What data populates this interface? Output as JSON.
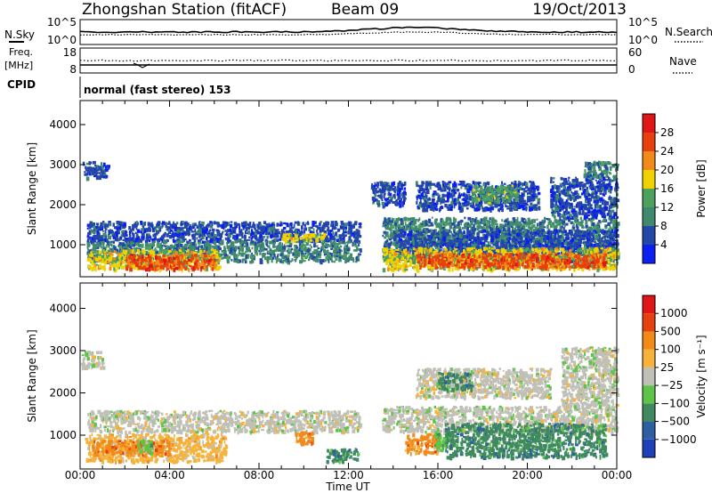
{
  "header": {
    "station": "Zhongshan Station (fitACF)",
    "beam": "Beam 09",
    "date": "19/Oct/2013"
  },
  "noise_panel": {
    "left_label": "N.Sky",
    "right_label": "N.Search",
    "left_ticks": [
      "10^5",
      "10^0"
    ],
    "right_ticks": [
      "10^5",
      "10^0"
    ]
  },
  "freq_panel": {
    "left_label_1": "Freq.",
    "left_label_2": "[MHz]",
    "left_ticks": [
      "18",
      "8"
    ],
    "right_label": "Nave",
    "right_ticks": [
      "60",
      "0"
    ]
  },
  "cpid": {
    "label": "CPID",
    "text": "normal (fast stereo) 153"
  },
  "colors": {
    "power": [
      "#0a1ff0",
      "#2447a8",
      "#3f8a6e",
      "#4ea15d",
      "#f0d200",
      "#f28a1a",
      "#e8400c",
      "#e01515"
    ],
    "velocity": [
      "#1f3fb8",
      "#2f5fa0",
      "#3f8a5f",
      "#5ec447",
      "#c0c0b8",
      "#f7b23a",
      "#f28a1a",
      "#e44010",
      "#e01515"
    ]
  },
  "chart_data": [
    {
      "type": "heatmap",
      "name": "power",
      "xlabel": "Time UT",
      "ylabel": "Slant Range [km]",
      "x_ticks": [
        "00:00",
        "04:00",
        "08:00",
        "12:00",
        "16:00",
        "20:00",
        "00:00"
      ],
      "y_ticks": [
        "1000",
        "2000",
        "3000",
        "4000"
      ],
      "ylim": [
        200,
        4600
      ],
      "colorbar": {
        "label": "Power [dB]",
        "ticks": [
          "4",
          "8",
          "12",
          "16",
          "20",
          "24",
          "28"
        ],
        "range": [
          0,
          32
        ]
      },
      "regions": [
        {
          "t0": 0.3,
          "t1": 12.5,
          "r0": 1100,
          "r1": 1600,
          "v": 8
        },
        {
          "t0": 0.3,
          "t1": 12.5,
          "r0": 600,
          "r1": 1100,
          "v": 12
        },
        {
          "t0": 0.3,
          "t1": 6.2,
          "r0": 400,
          "r1": 900,
          "v": 20
        },
        {
          "t0": 2.0,
          "t1": 6.0,
          "r0": 420,
          "r1": 780,
          "v": 28
        },
        {
          "t0": 0.1,
          "t1": 1.2,
          "r0": 2700,
          "r1": 3100,
          "v": 8
        },
        {
          "t0": 9.0,
          "t1": 11.0,
          "r0": 1100,
          "r1": 1300,
          "v": 20
        },
        {
          "t0": 13.5,
          "t1": 24,
          "r0": 600,
          "r1": 1700,
          "v": 12
        },
        {
          "t0": 14.0,
          "t1": 24,
          "r0": 800,
          "r1": 1400,
          "v": 8
        },
        {
          "t0": 13.5,
          "t1": 24,
          "r0": 400,
          "r1": 950,
          "v": 20
        },
        {
          "t0": 15.0,
          "t1": 23.5,
          "r0": 450,
          "r1": 800,
          "v": 28
        },
        {
          "t0": 15.0,
          "t1": 20.5,
          "r0": 1900,
          "r1": 2600,
          "v": 8
        },
        {
          "t0": 17.5,
          "t1": 19.5,
          "r0": 2100,
          "r1": 2500,
          "v": 16
        },
        {
          "t0": 21.0,
          "t1": 24,
          "r0": 1700,
          "r1": 2700,
          "v": 8
        },
        {
          "t0": 22.5,
          "t1": 24,
          "r0": 2700,
          "r1": 3100,
          "v": 12
        },
        {
          "t0": 13.0,
          "t1": 14.5,
          "r0": 2000,
          "r1": 2600,
          "v": 8
        }
      ]
    },
    {
      "type": "heatmap",
      "name": "velocity",
      "xlabel": "Time UT",
      "ylabel": "Slant Range [km]",
      "x_ticks": [
        "00:00",
        "04:00",
        "08:00",
        "12:00",
        "16:00",
        "20:00",
        "00:00"
      ],
      "y_ticks": [
        "1000",
        "2000",
        "3000",
        "4000"
      ],
      "ylim": [
        200,
        4600
      ],
      "colorbar": {
        "label": "Velocity [m s⁻¹]",
        "ticks": [
          "1000",
          "500",
          "100",
          "25",
          "−25",
          "−100",
          "−500",
          "−1000"
        ]
      },
      "regions": [
        {
          "t0": 0.3,
          "t1": 12.5,
          "r0": 1100,
          "r1": 1600,
          "c": 4
        },
        {
          "t0": 0.2,
          "t1": 6.5,
          "r0": 400,
          "r1": 1050,
          "c": 5
        },
        {
          "t0": 0.5,
          "t1": 4.0,
          "r0": 550,
          "r1": 900,
          "c": 6
        },
        {
          "t0": 2.5,
          "t1": 3.2,
          "r0": 600,
          "r1": 900,
          "c": 3
        },
        {
          "t0": 9.6,
          "t1": 10.4,
          "r0": 800,
          "r1": 1100,
          "c": 6
        },
        {
          "t0": 13.5,
          "t1": 24,
          "r0": 1100,
          "r1": 1700,
          "c": 4
        },
        {
          "t0": 14.5,
          "t1": 16.0,
          "r0": 600,
          "r1": 1050,
          "c": 6
        },
        {
          "t0": 15.8,
          "t1": 16.6,
          "r0": 650,
          "r1": 1100,
          "c": 3
        },
        {
          "t0": 16.3,
          "t1": 23.5,
          "r0": 500,
          "r1": 1300,
          "c": 2
        },
        {
          "t0": 15.0,
          "t1": 21.0,
          "r0": 1900,
          "r1": 2600,
          "c": 4
        },
        {
          "t0": 16.0,
          "t1": 17.5,
          "r0": 2100,
          "r1": 2500,
          "c": 2
        },
        {
          "t0": 21.5,
          "t1": 24,
          "r0": 1700,
          "r1": 3100,
          "c": 4
        },
        {
          "t0": 0.0,
          "t1": 1.0,
          "r0": 2600,
          "r1": 3000,
          "c": 4
        },
        {
          "t0": 11.0,
          "t1": 12.5,
          "r0": 400,
          "r1": 700,
          "c": 2
        }
      ]
    }
  ]
}
